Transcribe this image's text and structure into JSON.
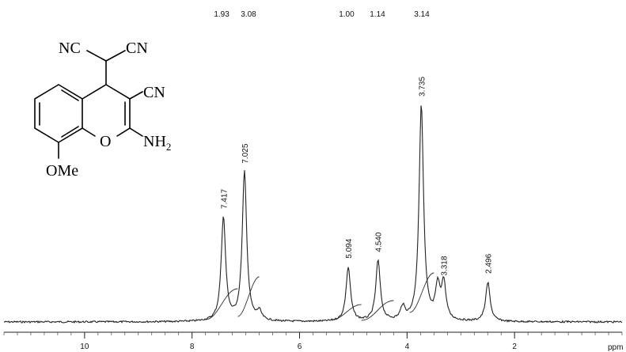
{
  "chart_data": {
    "type": "line",
    "title": "",
    "xlabel": "ppm",
    "ylabel": "",
    "xlim": [
      11.5,
      0
    ],
    "x_reversed": true,
    "xticks": [
      10,
      8,
      6,
      4,
      2
    ],
    "grid": false,
    "peaks": [
      {
        "ppm": 7.417,
        "label": "7.417",
        "height": 0.48
      },
      {
        "ppm": 7.025,
        "label": "7.025",
        "height": 0.69
      },
      {
        "ppm": 5.094,
        "label": "5.094",
        "height": 0.25
      },
      {
        "ppm": 4.54,
        "label": "4.540",
        "height": 0.28
      },
      {
        "ppm": 3.735,
        "label": "3.735",
        "height": 1.0
      },
      {
        "ppm": 3.318,
        "label": "3.318",
        "height": 0.17
      },
      {
        "ppm": 2.496,
        "label": "2.496",
        "height": 0.18
      }
    ],
    "minor_peaks": [
      {
        "ppm": 3.43,
        "height": 0.15
      },
      {
        "ppm": 4.08,
        "height": 0.06
      },
      {
        "ppm": 6.75,
        "height": 0.04
      }
    ],
    "integrals": [
      {
        "ppm_start": 7.75,
        "ppm_end": 7.15,
        "value": "1.93"
      },
      {
        "ppm_start": 7.15,
        "ppm_end": 6.75,
        "value": "3.08"
      },
      {
        "ppm_start": 5.4,
        "ppm_end": 4.85,
        "value": "1.00"
      },
      {
        "ppm_start": 4.85,
        "ppm_end": 4.25,
        "value": "1.14"
      },
      {
        "ppm_start": 3.95,
        "ppm_end": 3.5,
        "value": "3.14"
      }
    ]
  },
  "structure": {
    "labels": {
      "nc": "NC",
      "cn_top": "CN",
      "cn_ring": "CN",
      "o": "O",
      "nh2": "NH",
      "nh2_sub": "2",
      "ome": "OMe"
    }
  }
}
